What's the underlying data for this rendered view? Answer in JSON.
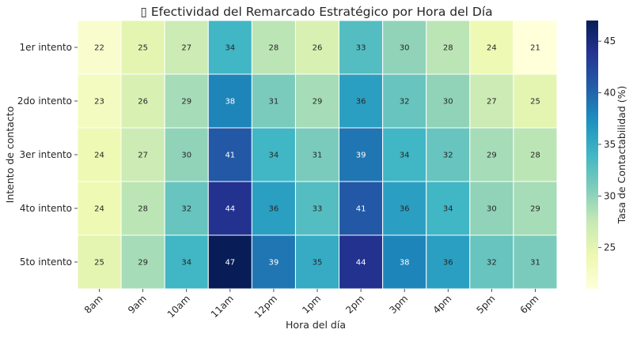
{
  "chart_data": {
    "type": "heatmap",
    "title": "▯ Efectividad del Remarcado Estratégico por Hora del Día",
    "xlabel": "Hora del día",
    "ylabel": "Intento de contacto",
    "x_categories": [
      "8am",
      "9am",
      "10am",
      "11am",
      "12pm",
      "1pm",
      "2pm",
      "3pm",
      "4pm",
      "5pm",
      "6pm"
    ],
    "y_categories": [
      "1er intento",
      "2do intento",
      "3er intento",
      "4to intento",
      "5to intento"
    ],
    "values": [
      [
        22,
        25,
        27,
        34,
        28,
        26,
        33,
        30,
        28,
        24,
        21
      ],
      [
        23,
        26,
        29,
        38,
        31,
        29,
        36,
        32,
        30,
        27,
        25
      ],
      [
        24,
        27,
        30,
        41,
        34,
        31,
        39,
        34,
        32,
        29,
        28
      ],
      [
        24,
        28,
        32,
        44,
        36,
        33,
        41,
        36,
        34,
        30,
        29
      ],
      [
        25,
        29,
        34,
        47,
        39,
        35,
        44,
        38,
        36,
        32,
        31
      ]
    ],
    "colorbar": {
      "label": "Tasa de Contactabilidad (%)",
      "range": [
        21,
        47
      ],
      "ticks": [
        25,
        30,
        35,
        40,
        45
      ],
      "colormap": "YlGnBu"
    }
  }
}
